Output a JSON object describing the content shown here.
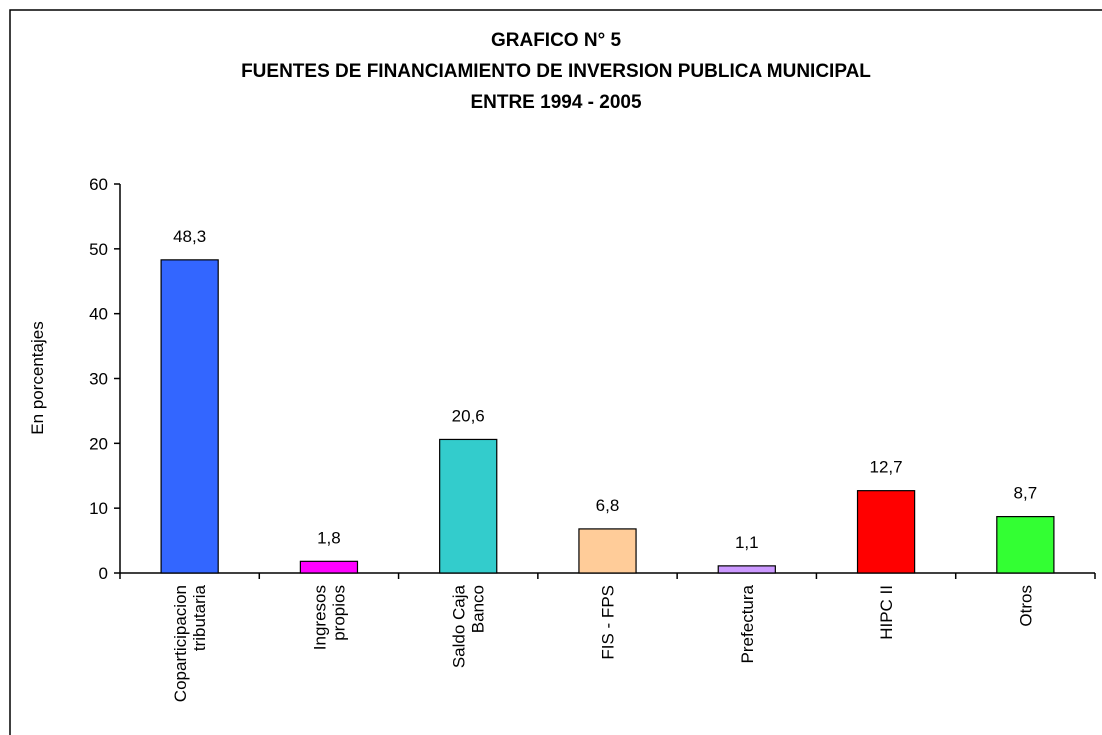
{
  "chart_data": {
    "type": "bar",
    "title": [
      "GRAFICO N° 5",
      "FUENTES DE FINANCIAMIENTO DE INVERSION PUBLICA MUNICIPAL",
      "ENTRE 1994 - 2005"
    ],
    "y_label": "En porcentajes",
    "categories": [
      "Coparticipacion\ntributaria",
      "Ingresos\npropios",
      "Saldo Caja\nBanco",
      "FIS - FPS",
      "Prefectura",
      "HIPC II",
      "Otros"
    ],
    "values": [
      48.3,
      1.8,
      20.6,
      6.8,
      1.1,
      12.7,
      8.7
    ],
    "value_labels": [
      "48,3",
      "1,8",
      "20,6",
      "6,8",
      "1,1",
      "12,7",
      "8,7"
    ],
    "colors": [
      "#3366ff",
      "#ff00ff",
      "#33cccc",
      "#ffcc99",
      "#cc99ff",
      "#ff0000",
      "#33ff33"
    ],
    "ylim": [
      0,
      60
    ],
    "yticks": [
      0,
      10,
      20,
      30,
      40,
      50,
      60
    ],
    "grid": false
  }
}
